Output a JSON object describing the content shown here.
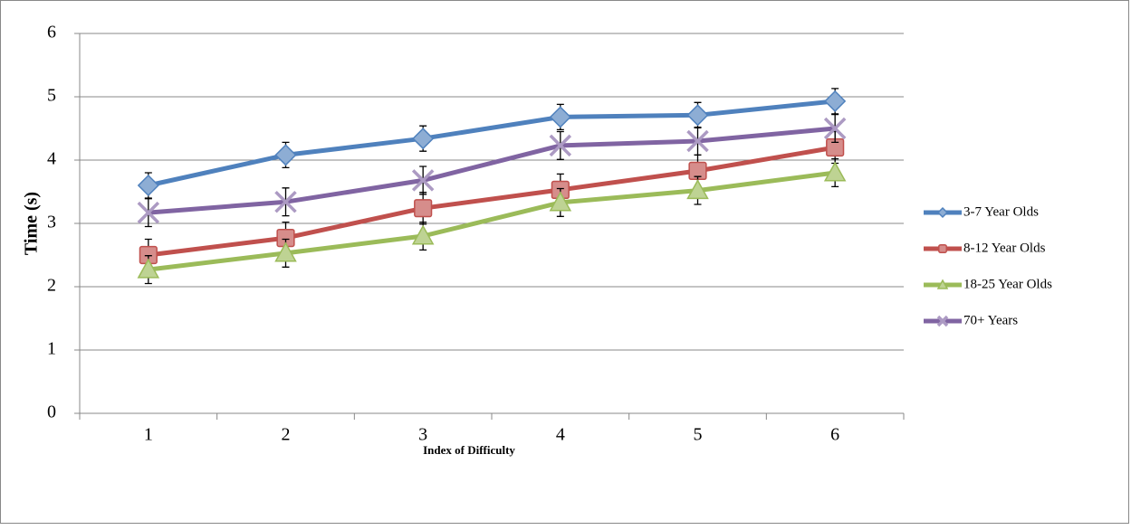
{
  "chart_data": {
    "type": "line",
    "x_label": "Index of Difficulty",
    "y_label": "Time (s)",
    "categories": [
      "1",
      "2",
      "3",
      "4",
      "5",
      "6"
    ],
    "series": [
      {
        "name": "3-7 Year Olds",
        "color": "#4f81bd",
        "marker": "diamond",
        "values": [
          3.6,
          4.08,
          4.34,
          4.68,
          4.71,
          4.93
        ],
        "errors": [
          0.2,
          0.2,
          0.2,
          0.2,
          0.2,
          0.2
        ]
      },
      {
        "name": "8-12 Year Olds",
        "color": "#c0504d",
        "marker": "square",
        "values": [
          2.5,
          2.77,
          3.24,
          3.53,
          3.83,
          4.2
        ],
        "errors": [
          0.25,
          0.25,
          0.25,
          0.25,
          0.25,
          0.25
        ]
      },
      {
        "name": "18-25 Year Olds",
        "color": "#9bbb59",
        "marker": "triangle",
        "values": [
          2.27,
          2.53,
          2.8,
          3.33,
          3.52,
          3.8
        ],
        "errors": [
          0.22,
          0.22,
          0.22,
          0.22,
          0.22,
          0.22
        ]
      },
      {
        "name": "70+ Years",
        "color": "#8064a2",
        "marker": "x",
        "values": [
          3.17,
          3.34,
          3.68,
          4.23,
          4.3,
          4.5
        ],
        "errors": [
          0.22,
          0.22,
          0.22,
          0.22,
          0.22,
          0.22
        ]
      }
    ],
    "ylim": [
      0,
      6
    ],
    "yticks": [
      0,
      1,
      2,
      3,
      4,
      5,
      6
    ],
    "grid": true,
    "legend": "right"
  }
}
